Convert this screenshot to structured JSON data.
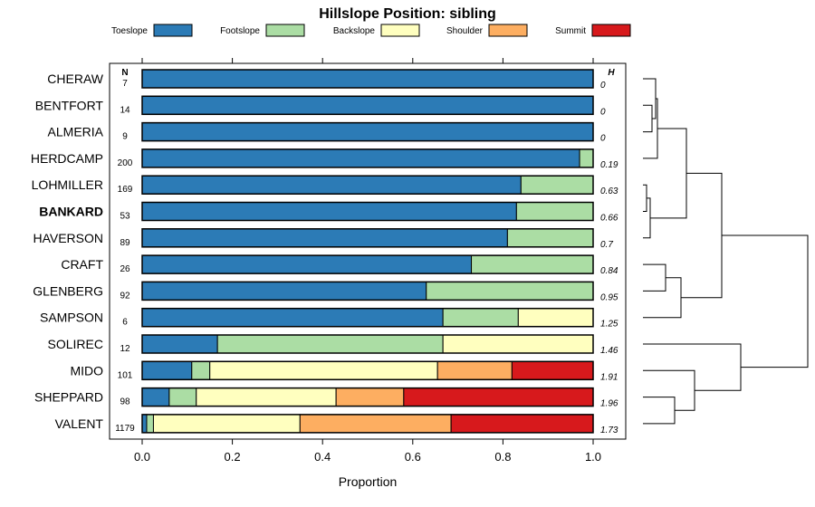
{
  "chart_data": {
    "type": "bar",
    "orientation": "horizontal",
    "stacked": true,
    "title": "Hillslope Position: sibling",
    "xlabel": "Proportion",
    "xlim": [
      0,
      1
    ],
    "xticks": [
      0.0,
      0.2,
      0.4,
      0.6,
      0.8,
      1.0
    ],
    "xtick_labels": [
      "0.0",
      "0.2",
      "0.4",
      "0.6",
      "0.8",
      "1.0"
    ],
    "n_header": "N",
    "h_header": "H",
    "series_names": [
      "Toeslope",
      "Footslope",
      "Backslope",
      "Shoulder",
      "Summit"
    ],
    "colors": [
      "#2c7bb6",
      "#abdda4",
      "#ffffbf",
      "#fdae61",
      "#d7191c"
    ],
    "categories": [
      {
        "name": "CHERAW",
        "n": "7",
        "h": "0",
        "bold": false,
        "values": [
          1.0,
          0,
          0,
          0,
          0
        ]
      },
      {
        "name": "BENTFORT",
        "n": "14",
        "h": "0",
        "bold": false,
        "values": [
          1.0,
          0,
          0,
          0,
          0
        ]
      },
      {
        "name": "ALMERIA",
        "n": "9",
        "h": "0",
        "bold": false,
        "values": [
          1.0,
          0,
          0,
          0,
          0
        ]
      },
      {
        "name": "HERDCAMP",
        "n": "200",
        "h": "0.19",
        "bold": false,
        "values": [
          0.97,
          0.03,
          0,
          0,
          0
        ]
      },
      {
        "name": "LOHMILLER",
        "n": "169",
        "h": "0.63",
        "bold": false,
        "values": [
          0.84,
          0.16,
          0,
          0,
          0
        ]
      },
      {
        "name": "BANKARD",
        "n": "53",
        "h": "0.66",
        "bold": true,
        "values": [
          0.83,
          0.17,
          0,
          0,
          0
        ]
      },
      {
        "name": "HAVERSON",
        "n": "89",
        "h": "0.7",
        "bold": false,
        "values": [
          0.81,
          0.19,
          0,
          0,
          0
        ]
      },
      {
        "name": "CRAFT",
        "n": "26",
        "h": "0.84",
        "bold": false,
        "values": [
          0.73,
          0.27,
          0,
          0,
          0
        ]
      },
      {
        "name": "GLENBERG",
        "n": "92",
        "h": "0.95",
        "bold": false,
        "values": [
          0.63,
          0.37,
          0,
          0,
          0
        ]
      },
      {
        "name": "SAMPSON",
        "n": "6",
        "h": "1.25",
        "bold": false,
        "values": [
          0.667,
          0.167,
          0.166,
          0,
          0
        ]
      },
      {
        "name": "SOLIREC",
        "n": "12",
        "h": "1.46",
        "bold": false,
        "values": [
          0.167,
          0.5,
          0.333,
          0,
          0
        ]
      },
      {
        "name": "MIDO",
        "n": "101",
        "h": "1.91",
        "bold": false,
        "values": [
          0.11,
          0.04,
          0.505,
          0.165,
          0.18
        ]
      },
      {
        "name": "SHEPPARD",
        "n": "98",
        "h": "1.96",
        "bold": false,
        "values": [
          0.06,
          0.06,
          0.31,
          0.15,
          0.42
        ]
      },
      {
        "name": "VALENT",
        "n": "1179",
        "h": "1.73",
        "bold": false,
        "values": [
          0.01,
          0.015,
          0.325,
          0.335,
          0.315
        ]
      }
    ]
  }
}
